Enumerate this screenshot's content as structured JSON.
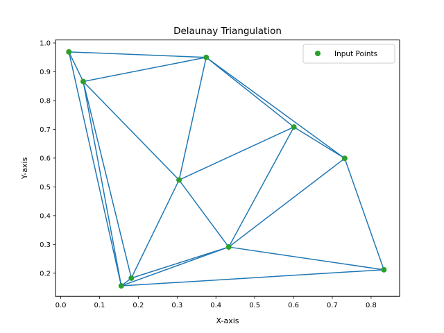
{
  "chart_data": {
    "type": "line",
    "title": "Delaunay Triangulation",
    "xlabel": "X-axis",
    "ylabel": "Y-axis",
    "xlim": [
      -0.0135,
      0.8735
    ],
    "ylim": [
      0.1195,
      1.0105
    ],
    "xticks": [
      0.0,
      0.1,
      0.2,
      0.3,
      0.4,
      0.5,
      0.6,
      0.7,
      0.8
    ],
    "xtick_labels": [
      "0.0",
      "0.1",
      "0.2",
      "0.3",
      "0.4",
      "0.5",
      "0.6",
      "0.7",
      "0.8"
    ],
    "yticks": [
      0.2,
      0.3,
      0.4,
      0.5,
      0.6,
      0.7,
      0.8,
      0.9,
      1.0
    ],
    "ytick_labels": [
      "0.2",
      "0.3",
      "0.4",
      "0.5",
      "0.6",
      "0.7",
      "0.8",
      "0.9",
      "1.0"
    ],
    "grid": false,
    "legend": {
      "placement": "top-right",
      "entries": [
        "Input Points"
      ]
    },
    "edge_color": "#1f77b4",
    "point_color": "#2ca02c",
    "points": [
      {
        "x": 0.021,
        "y": 0.969
      },
      {
        "x": 0.058,
        "y": 0.866
      },
      {
        "x": 0.375,
        "y": 0.95
      },
      {
        "x": 0.601,
        "y": 0.708
      },
      {
        "x": 0.732,
        "y": 0.599
      },
      {
        "x": 0.305,
        "y": 0.524
      },
      {
        "x": 0.433,
        "y": 0.291
      },
      {
        "x": 0.833,
        "y": 0.212
      },
      {
        "x": 0.182,
        "y": 0.183
      },
      {
        "x": 0.156,
        "y": 0.156
      }
    ],
    "edges": [
      [
        0,
        2
      ],
      [
        0,
        1
      ],
      [
        0,
        9
      ],
      [
        1,
        2
      ],
      [
        1,
        5
      ],
      [
        1,
        8
      ],
      [
        1,
        9
      ],
      [
        2,
        5
      ],
      [
        2,
        3
      ],
      [
        2,
        4
      ],
      [
        3,
        4
      ],
      [
        3,
        5
      ],
      [
        3,
        6
      ],
      [
        4,
        6
      ],
      [
        4,
        7
      ],
      [
        5,
        6
      ],
      [
        5,
        8
      ],
      [
        6,
        8
      ],
      [
        6,
        9
      ],
      [
        6,
        7
      ],
      [
        7,
        9
      ],
      [
        8,
        9
      ]
    ]
  }
}
